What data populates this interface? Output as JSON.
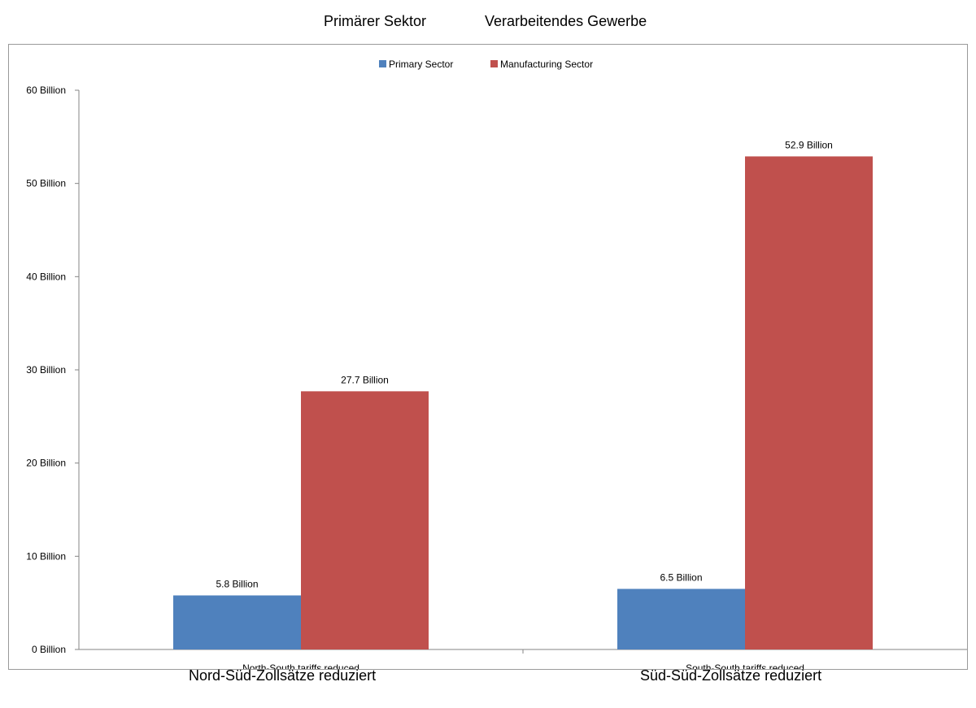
{
  "overlay": {
    "top_primary": "Primärer Sektor",
    "top_manufacturing": "Verarbeitendes Gewerbe",
    "bottom_left": "Nord-Süd-Zollsätze reduziert",
    "bottom_right": "Süd-Süd-Zollsätze reduziert"
  },
  "chart_data": {
    "type": "bar",
    "title": "",
    "xlabel": "",
    "ylabel": "",
    "categories": [
      "North-South tariffs reduced",
      "South-South tariffs reduced"
    ],
    "series": [
      {
        "name": "Primary Sector",
        "color": "#4f81bd",
        "values": [
          5.8,
          6.5
        ],
        "labels": [
          "5.8 Billion",
          "6.5 Billion"
        ]
      },
      {
        "name": "Manufacturing Sector",
        "color": "#c0504d",
        "values": [
          27.7,
          52.9
        ],
        "labels": [
          "27.7 Billion",
          "52.9 Billion"
        ]
      }
    ],
    "ylim": [
      0,
      60
    ],
    "yticks": [
      0,
      10,
      20,
      30,
      40,
      50,
      60
    ],
    "ytick_labels": [
      "0 Billion",
      "10 Billion",
      "20 Billion",
      "30 Billion",
      "40 Billion",
      "50 Billion",
      "60 Billion"
    ],
    "grid": false,
    "legend_position": "top"
  }
}
